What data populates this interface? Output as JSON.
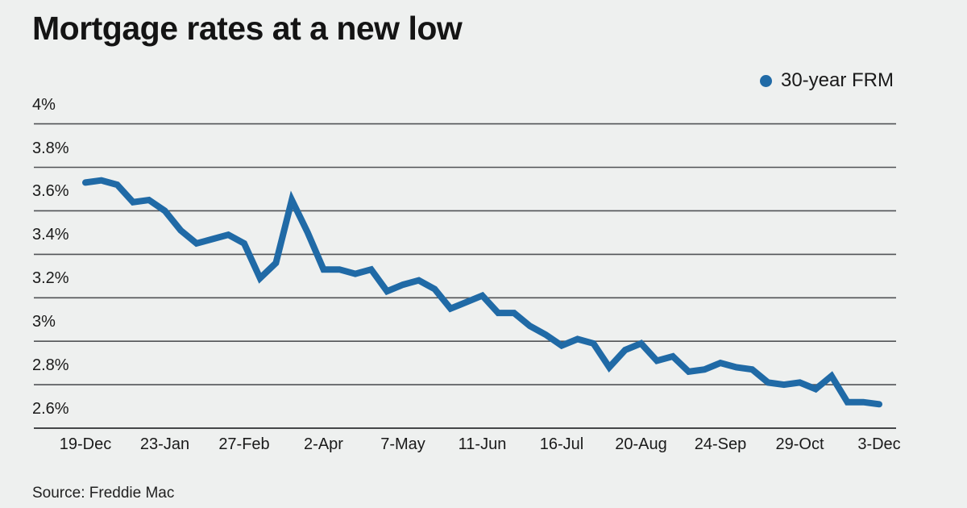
{
  "title": "Mortgage rates at a new low",
  "legend": {
    "label": "30-year FRM"
  },
  "source": "Source: Freddie Mac",
  "colors": {
    "background": "#eef0ef",
    "line": "#206aa6",
    "grid": "#515356",
    "axis": "#454749",
    "text": "#1a1a1a"
  },
  "chart_data": {
    "type": "line",
    "title": "Mortgage rates at a new low",
    "series": [
      {
        "name": "30-year FRM",
        "values": [
          3.73,
          3.74,
          3.72,
          3.64,
          3.65,
          3.6,
          3.51,
          3.45,
          3.47,
          3.49,
          3.45,
          3.29,
          3.36,
          3.65,
          3.5,
          3.33,
          3.33,
          3.31,
          3.33,
          3.23,
          3.26,
          3.28,
          3.24,
          3.15,
          3.18,
          3.21,
          3.13,
          3.13,
          3.07,
          3.03,
          2.98,
          3.01,
          2.99,
          2.88,
          2.96,
          2.99,
          2.91,
          2.93,
          2.86,
          2.87,
          2.9,
          2.88,
          2.87,
          2.81,
          2.8,
          2.81,
          2.78,
          2.84,
          2.72,
          2.72,
          2.71
        ]
      }
    ],
    "x_tick_labels": [
      "19-Dec",
      "23-Jan",
      "27-Feb",
      "2-Apr",
      "7-May",
      "11-Jun",
      "16-Jul",
      "20-Aug",
      "24-Sep",
      "29-Oct",
      "3-Dec"
    ],
    "x_tick_indices": [
      0,
      5,
      10,
      15,
      20,
      25,
      30,
      35,
      40,
      45,
      50
    ],
    "y_tick_labels": [
      "4%",
      "3.8%",
      "3.6%",
      "3.4%",
      "3.2%",
      "3%",
      "2.8%",
      "2.6%"
    ],
    "y_tick_values": [
      4.0,
      3.8,
      3.6,
      3.4,
      3.2,
      3.0,
      2.8,
      2.6
    ],
    "ylim": [
      2.6,
      4.0
    ],
    "unit": "%",
    "grid": "horizontal",
    "legend_position": "top-right",
    "xlabel": "",
    "ylabel": ""
  }
}
